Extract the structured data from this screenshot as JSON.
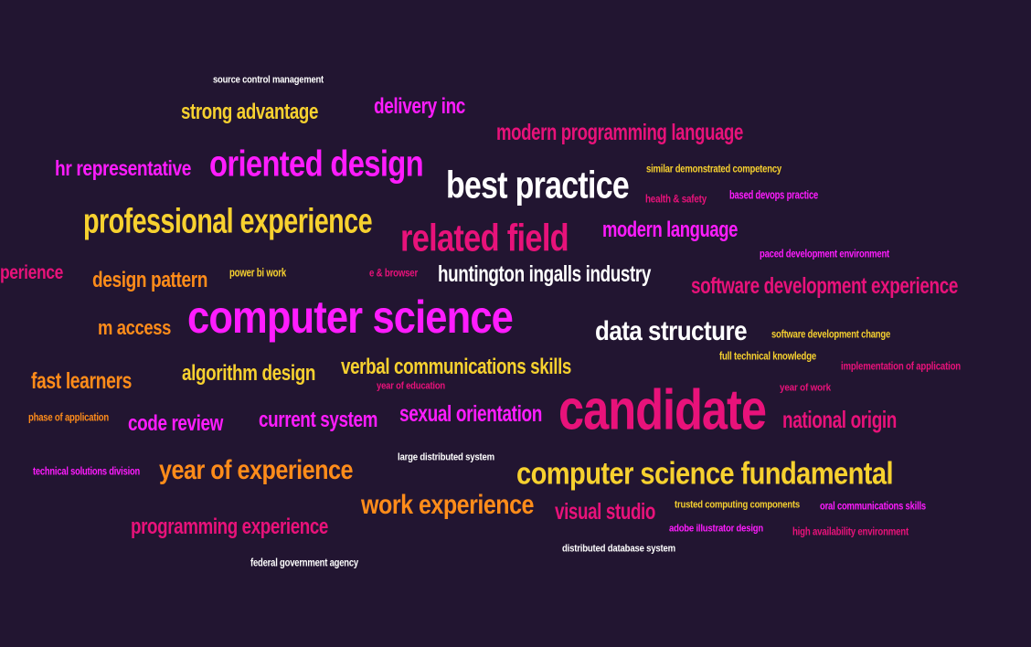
{
  "colors": {
    "background": "#221531",
    "white": "#ffffff",
    "yellow": "#f7d12f",
    "magenta": "#ff1cff",
    "pink": "#e8127a",
    "orange": "#ff8c1a"
  },
  "words": [
    {
      "text": "source control management",
      "color": "#ffffff",
      "weight": 1
    },
    {
      "text": "strong advantage",
      "color": "#f7d12f",
      "weight": 3
    },
    {
      "text": "delivery inc",
      "color": "#ff1cff",
      "weight": 3
    },
    {
      "text": "modern programming language",
      "color": "#e8127a",
      "weight": 3
    },
    {
      "text": "hr representative",
      "color": "#ff1cff",
      "weight": 3
    },
    {
      "text": "oriented design",
      "color": "#ff1cff",
      "weight": 5
    },
    {
      "text": "best practice",
      "color": "#ffffff",
      "weight": 5
    },
    {
      "text": "similar demonstrated competency",
      "color": "#f7d12f",
      "weight": 1
    },
    {
      "text": "health & safety",
      "color": "#e8127a",
      "weight": 1
    },
    {
      "text": "based devops practice",
      "color": "#ff1cff",
      "weight": 1
    },
    {
      "text": "professional experience",
      "color": "#f7d12f",
      "weight": 4
    },
    {
      "text": "related field",
      "color": "#e8127a",
      "weight": 5
    },
    {
      "text": "modern language",
      "color": "#ff1cff",
      "weight": 3
    },
    {
      "text": "paced development environment",
      "color": "#ff1cff",
      "weight": 1
    },
    {
      "text": "perience",
      "color": "#e8127a",
      "weight": 3
    },
    {
      "text": "design pattern",
      "color": "#ff8c1a",
      "weight": 3
    },
    {
      "text": "power bi work",
      "color": "#f7d12f",
      "weight": 1
    },
    {
      "text": "e & browser",
      "color": "#e8127a",
      "weight": 1
    },
    {
      "text": "huntington ingalls industry",
      "color": "#ffffff",
      "weight": 3
    },
    {
      "text": "software development experience",
      "color": "#e8127a",
      "weight": 3
    },
    {
      "text": "m access",
      "color": "#ff8c1a",
      "weight": 3
    },
    {
      "text": "computer science",
      "color": "#ff1cff",
      "weight": 6
    },
    {
      "text": "data structure",
      "color": "#ffffff",
      "weight": 4
    },
    {
      "text": "software development change",
      "color": "#f7d12f",
      "weight": 1
    },
    {
      "text": "full technical knowledge",
      "color": "#f7d12f",
      "weight": 1
    },
    {
      "text": "implementation of application",
      "color": "#e8127a",
      "weight": 1
    },
    {
      "text": "fast learners",
      "color": "#ff8c1a",
      "weight": 3
    },
    {
      "text": "algorithm design",
      "color": "#f7d12f",
      "weight": 3
    },
    {
      "text": "verbal communications skills",
      "color": "#f7d12f",
      "weight": 3
    },
    {
      "text": "year of education",
      "color": "#e8127a",
      "weight": 1
    },
    {
      "text": "year of work",
      "color": "#e8127a",
      "weight": 1
    },
    {
      "text": "phase of application",
      "color": "#ff8c1a",
      "weight": 1
    },
    {
      "text": "code review",
      "color": "#ff1cff",
      "weight": 3
    },
    {
      "text": "current system",
      "color": "#ff1cff",
      "weight": 3
    },
    {
      "text": "sexual orientation",
      "color": "#ff1cff",
      "weight": 3
    },
    {
      "text": "candidate",
      "color": "#e8127a",
      "weight": 7
    },
    {
      "text": "national origin",
      "color": "#e8127a",
      "weight": 3
    },
    {
      "text": "large distributed system",
      "color": "#ffffff",
      "weight": 1
    },
    {
      "text": "technical solutions division",
      "color": "#ff1cff",
      "weight": 1
    },
    {
      "text": "year of experience",
      "color": "#ff8c1a",
      "weight": 4
    },
    {
      "text": "computer science fundamental",
      "color": "#f7d12f",
      "weight": 4
    },
    {
      "text": "work experience",
      "color": "#ff8c1a",
      "weight": 4
    },
    {
      "text": "visual studio",
      "color": "#e8127a",
      "weight": 3
    },
    {
      "text": "trusted computing components",
      "color": "#f7d12f",
      "weight": 1
    },
    {
      "text": "oral communications skills",
      "color": "#ff1cff",
      "weight": 1
    },
    {
      "text": "programming experience",
      "color": "#e8127a",
      "weight": 3
    },
    {
      "text": "adobe illustrator design",
      "color": "#ff1cff",
      "weight": 1
    },
    {
      "text": "high availability environment",
      "color": "#e8127a",
      "weight": 1
    },
    {
      "text": "distributed database system",
      "color": "#ffffff",
      "weight": 1
    },
    {
      "text": "federal government agency",
      "color": "#ffffff",
      "weight": 1
    }
  ]
}
